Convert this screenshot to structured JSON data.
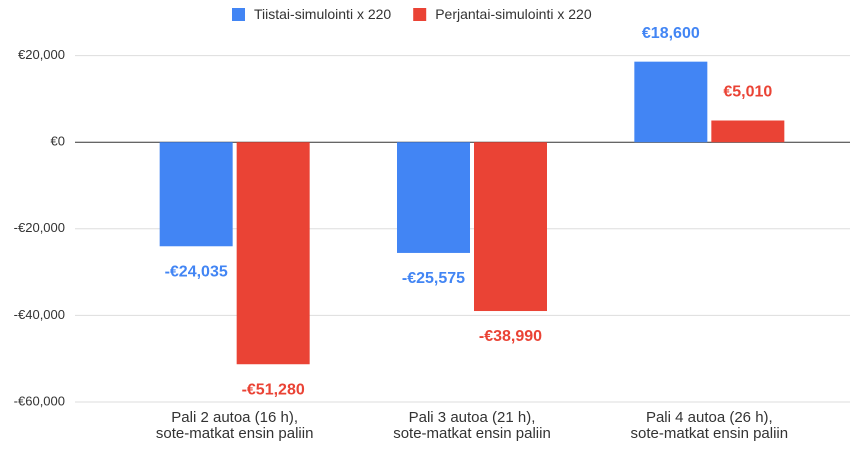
{
  "chart_data": {
    "type": "bar",
    "categories": [
      [
        "Pali 2 autoa (16 h),",
        "sote-matkat ensin paliin"
      ],
      [
        "Pali 3 autoa (21 h),",
        "sote-matkat ensin paliin"
      ],
      [
        "Pali 4 autoa (26 h),",
        "sote-matkat ensin paliin"
      ]
    ],
    "series": [
      {
        "name": "Tiistai-simulointi x 220",
        "color": "#4285f4",
        "values": [
          -24035,
          -25575,
          18600
        ],
        "value_labels": [
          "-€24,035",
          "-€25,575",
          "€18,600"
        ]
      },
      {
        "name": "Perjantai-simulointi x 220",
        "color": "#ea4335",
        "values": [
          -51280,
          -38990,
          5010
        ],
        "value_labels": [
          "-€51,280",
          "-€38,990",
          "€5,010"
        ]
      }
    ],
    "ylim": [
      -60000,
      27000
    ],
    "yticks": [
      {
        "value": 20000,
        "label": "€20,000"
      },
      {
        "value": 0,
        "label": "€0"
      },
      {
        "value": -20000,
        "label": "-€20,000"
      },
      {
        "value": -40000,
        "label": "-€40,000"
      },
      {
        "value": -60000,
        "label": "-€60,000"
      }
    ],
    "grid": true,
    "legend": "top"
  }
}
